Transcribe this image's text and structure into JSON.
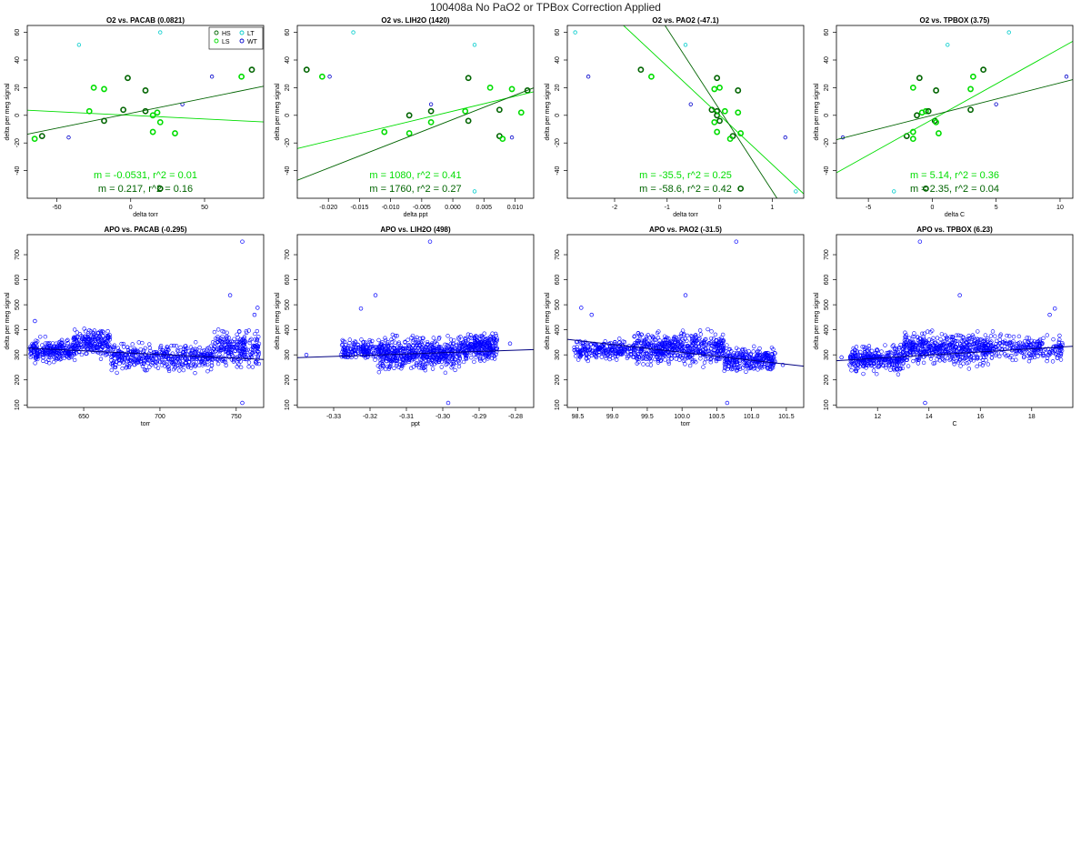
{
  "page": {
    "title": "100408a   No PaO2 or TPBox Correction Applied"
  },
  "colors": {
    "HS": "#006400",
    "LS": "#00dd00",
    "LT": "#00cccc",
    "WT": "#0000cc",
    "apo_points": "#0000ff",
    "apo_line": "#000080",
    "fit_light": "#00dd00",
    "fit_dark": "#006400"
  },
  "legend": {
    "entries": [
      {
        "label": "HS",
        "group": "HS"
      },
      {
        "label": "LT",
        "group": "LT"
      },
      {
        "label": "LS",
        "group": "LS"
      },
      {
        "label": "WT",
        "group": "WT"
      }
    ]
  },
  "chart_data": [
    {
      "type": "scatter",
      "title": "O2 vs. PACAB (0.0821)",
      "xlabel": "delta torr",
      "ylabel": "delta per meg signal",
      "xlim": [
        -70,
        90
      ],
      "ylim": [
        -60,
        65
      ],
      "xticks": [
        -50,
        0,
        50
      ],
      "xtick_labels": [
        "-50",
        "0",
        "50"
      ],
      "yticks": [
        -40,
        -20,
        0,
        20,
        40,
        60
      ],
      "show_legend": true,
      "points": [
        {
          "x": 20,
          "y": 60,
          "g": "LT"
        },
        {
          "x": -35,
          "y": 51,
          "g": "LT"
        },
        {
          "x": 82,
          "y": 33,
          "g": "HS"
        },
        {
          "x": 75,
          "y": 28,
          "g": "LS"
        },
        {
          "x": 55,
          "y": 28,
          "g": "WT"
        },
        {
          "x": -2,
          "y": 27,
          "g": "HS"
        },
        {
          "x": -25,
          "y": 20,
          "g": "LS"
        },
        {
          "x": -18,
          "y": 19,
          "g": "LS"
        },
        {
          "x": 10,
          "y": 18,
          "g": "HS"
        },
        {
          "x": 35,
          "y": 8,
          "g": "WT"
        },
        {
          "x": -5,
          "y": 4,
          "g": "HS"
        },
        {
          "x": -28,
          "y": 3,
          "g": "LS"
        },
        {
          "x": 10,
          "y": 3,
          "g": "HS"
        },
        {
          "x": 18,
          "y": 2,
          "g": "LS"
        },
        {
          "x": 15,
          "y": 0,
          "g": "LS"
        },
        {
          "x": -18,
          "y": -4,
          "g": "HS"
        },
        {
          "x": 20,
          "y": -5,
          "g": "LS"
        },
        {
          "x": 15,
          "y": -12,
          "g": "LS"
        },
        {
          "x": 30,
          "y": -13,
          "g": "LS"
        },
        {
          "x": -60,
          "y": -15,
          "g": "HS"
        },
        {
          "x": -65,
          "y": -17,
          "g": "LS"
        },
        {
          "x": -42,
          "y": -16,
          "g": "WT"
        },
        {
          "x": 20,
          "y": -53,
          "g": "HS"
        }
      ],
      "fits": [
        {
          "g": "LS",
          "m": -0.0531,
          "b": 0,
          "r2": 0.01,
          "label": "m = -0.0531, r^2 = 0.01"
        },
        {
          "g": "HS",
          "m": 0.217,
          "b": 1.5,
          "r2": 0.16,
          "label": "m = 0.217, r^2 = 0.16"
        }
      ]
    },
    {
      "type": "scatter",
      "title": "O2 vs. LIH2O (1420)",
      "xlabel": "delta ppt",
      "ylabel": "delta per meg signal",
      "xlim": [
        -0.025,
        0.013
      ],
      "ylim": [
        -60,
        65
      ],
      "xticks": [
        -0.02,
        -0.015,
        -0.01,
        -0.005,
        0,
        0.005,
        0.01
      ],
      "xtick_labels": [
        "-0.020",
        "-0.015",
        "-0.010",
        "-0.005",
        "0.000",
        "0.005",
        "0.010"
      ],
      "yticks": [
        -40,
        -20,
        0,
        20,
        40,
        60
      ],
      "show_legend": false,
      "points": [
        {
          "x": -0.016,
          "y": 60,
          "g": "LT"
        },
        {
          "x": 0.0035,
          "y": 51,
          "g": "LT"
        },
        {
          "x": -0.0235,
          "y": 33,
          "g": "HS"
        },
        {
          "x": -0.021,
          "y": 28,
          "g": "LS"
        },
        {
          "x": -0.0198,
          "y": 28,
          "g": "WT"
        },
        {
          "x": 0.0025,
          "y": 27,
          "g": "HS"
        },
        {
          "x": 0.006,
          "y": 20,
          "g": "LS"
        },
        {
          "x": 0.0095,
          "y": 19,
          "g": "LS"
        },
        {
          "x": 0.012,
          "y": 18,
          "g": "HS"
        },
        {
          "x": -0.0035,
          "y": 8,
          "g": "WT"
        },
        {
          "x": 0.0075,
          "y": 4,
          "g": "HS"
        },
        {
          "x": 0.002,
          "y": 3,
          "g": "LS"
        },
        {
          "x": -0.0035,
          "y": 3,
          "g": "HS"
        },
        {
          "x": 0.011,
          "y": 2,
          "g": "LS"
        },
        {
          "x": -0.007,
          "y": 0,
          "g": "HS"
        },
        {
          "x": 0.0025,
          "y": -4,
          "g": "HS"
        },
        {
          "x": -0.0035,
          "y": -5,
          "g": "LS"
        },
        {
          "x": -0.011,
          "y": -12,
          "g": "LS"
        },
        {
          "x": -0.007,
          "y": -13,
          "g": "LS"
        },
        {
          "x": 0.0075,
          "y": -15,
          "g": "HS"
        },
        {
          "x": 0.008,
          "y": -17,
          "g": "LS"
        },
        {
          "x": 0.0095,
          "y": -16,
          "g": "WT"
        },
        {
          "x": 0.0035,
          "y": -55,
          "g": "LT"
        }
      ],
      "fits": [
        {
          "g": "LS",
          "m": 1080,
          "b": 3,
          "r2": 0.41,
          "label": "m = 1080, r^2 = 0.41"
        },
        {
          "g": "HS",
          "m": 1760,
          "b": -3,
          "r2": 0.27,
          "label": "m = 1760, r^2 = 0.27"
        }
      ]
    },
    {
      "type": "scatter",
      "title": "O2 vs. PAO2 (-47.1)",
      "xlabel": "delta torr",
      "ylabel": "delta per meg signal",
      "xlim": [
        -2.9,
        1.6
      ],
      "ylim": [
        -60,
        65
      ],
      "xticks": [
        -2,
        -1,
        0,
        1
      ],
      "xtick_labels": [
        "-2",
        "-1",
        "0",
        "1"
      ],
      "yticks": [
        -40,
        -20,
        0,
        20,
        40,
        60
      ],
      "show_legend": false,
      "points": [
        {
          "x": -2.75,
          "y": 60,
          "g": "LT"
        },
        {
          "x": -0.65,
          "y": 51,
          "g": "LT"
        },
        {
          "x": -1.5,
          "y": 33,
          "g": "HS"
        },
        {
          "x": -1.3,
          "y": 28,
          "g": "LS"
        },
        {
          "x": -2.5,
          "y": 28,
          "g": "WT"
        },
        {
          "x": -0.05,
          "y": 27,
          "g": "HS"
        },
        {
          "x": 0.0,
          "y": 20,
          "g": "LS"
        },
        {
          "x": -0.1,
          "y": 19,
          "g": "LS"
        },
        {
          "x": 0.35,
          "y": 18,
          "g": "HS"
        },
        {
          "x": -0.55,
          "y": 8,
          "g": "WT"
        },
        {
          "x": -0.15,
          "y": 4,
          "g": "HS"
        },
        {
          "x": 0.1,
          "y": 3,
          "g": "LS"
        },
        {
          "x": -0.05,
          "y": 3,
          "g": "HS"
        },
        {
          "x": 0.35,
          "y": 2,
          "g": "LS"
        },
        {
          "x": -0.05,
          "y": 0,
          "g": "HS"
        },
        {
          "x": 0.0,
          "y": -4,
          "g": "HS"
        },
        {
          "x": -0.1,
          "y": -5,
          "g": "LS"
        },
        {
          "x": -0.05,
          "y": -12,
          "g": "LS"
        },
        {
          "x": 0.4,
          "y": -13,
          "g": "LS"
        },
        {
          "x": 0.25,
          "y": -15,
          "g": "HS"
        },
        {
          "x": 0.2,
          "y": -17,
          "g": "LS"
        },
        {
          "x": 1.25,
          "y": -16,
          "g": "WT"
        },
        {
          "x": 0.4,
          "y": -53,
          "g": "HS"
        },
        {
          "x": 1.45,
          "y": -55,
          "g": "LT"
        }
      ],
      "fits": [
        {
          "g": "LS",
          "m": -35.5,
          "b": 0,
          "r2": 0.25,
          "label": "m = -35.5, r^2 = 0.25"
        },
        {
          "g": "HS",
          "m": -58.6,
          "b": 4,
          "r2": 0.42,
          "label": "m = -58.6, r^2 = 0.42"
        }
      ]
    },
    {
      "type": "scatter",
      "title": "O2 vs. TPBOX (3.75)",
      "xlabel": "delta C",
      "ylabel": "delta per meg signal",
      "xlim": [
        -7.5,
        11
      ],
      "ylim": [
        -60,
        65
      ],
      "xticks": [
        -5,
        0,
        5,
        10
      ],
      "xtick_labels": [
        "-5",
        "0",
        "5",
        "10"
      ],
      "yticks": [
        -40,
        -20,
        0,
        20,
        40,
        60
      ],
      "show_legend": false,
      "points": [
        {
          "x": 6,
          "y": 60,
          "g": "LT"
        },
        {
          "x": 1.2,
          "y": 51,
          "g": "LT"
        },
        {
          "x": 4,
          "y": 33,
          "g": "HS"
        },
        {
          "x": 3.2,
          "y": 28,
          "g": "LS"
        },
        {
          "x": 10.5,
          "y": 28,
          "g": "WT"
        },
        {
          "x": -1,
          "y": 27,
          "g": "HS"
        },
        {
          "x": -1.5,
          "y": 20,
          "g": "LS"
        },
        {
          "x": 3,
          "y": 19,
          "g": "LS"
        },
        {
          "x": 0.3,
          "y": 18,
          "g": "HS"
        },
        {
          "x": 5,
          "y": 8,
          "g": "WT"
        },
        {
          "x": 3,
          "y": 4,
          "g": "HS"
        },
        {
          "x": -0.5,
          "y": 3,
          "g": "LS"
        },
        {
          "x": -0.3,
          "y": 3,
          "g": "HS"
        },
        {
          "x": -0.8,
          "y": 2,
          "g": "LS"
        },
        {
          "x": -1.2,
          "y": 0,
          "g": "HS"
        },
        {
          "x": 0.2,
          "y": -4,
          "g": "HS"
        },
        {
          "x": 0.3,
          "y": -5,
          "g": "LS"
        },
        {
          "x": -1.5,
          "y": -12,
          "g": "LS"
        },
        {
          "x": 0.5,
          "y": -13,
          "g": "LS"
        },
        {
          "x": -2,
          "y": -15,
          "g": "HS"
        },
        {
          "x": -1.5,
          "y": -17,
          "g": "LS"
        },
        {
          "x": -7,
          "y": -16,
          "g": "WT"
        },
        {
          "x": -0.5,
          "y": -53,
          "g": "HS"
        },
        {
          "x": -3,
          "y": -55,
          "g": "LT"
        }
      ],
      "fits": [
        {
          "g": "LS",
          "m": 5.14,
          "b": -3,
          "r2": 0.36,
          "label": "m = 5.14, r^2 = 0.36"
        },
        {
          "g": "HS",
          "m": 2.35,
          "b": 0,
          "r2": 0.04,
          "label": "m = 2.35, r^2 = 0.04"
        }
      ]
    },
    {
      "type": "scatter",
      "title": "APO vs. PACAB (-0.295)",
      "xlabel": "torr",
      "ylabel": "delta per meg signal",
      "xlim": [
        613,
        768
      ],
      "ylim": [
        90,
        780
      ],
      "xticks": [
        650,
        700,
        750
      ],
      "xtick_labels": [
        "650",
        "700",
        "750"
      ],
      "yticks": [
        100,
        200,
        300,
        400,
        500,
        600,
        700
      ],
      "fit": {
        "m": -0.295,
        "b": 508
      },
      "clusters": [
        {
          "xmin": 615,
          "xmax": 645,
          "ymin": 255,
          "ymax": 375,
          "n": 240
        },
        {
          "xmin": 643,
          "xmax": 668,
          "ymin": 280,
          "ymax": 420,
          "n": 200
        },
        {
          "xmin": 668,
          "xmax": 735,
          "ymin": 215,
          "ymax": 365,
          "n": 420
        },
        {
          "xmin": 735,
          "xmax": 765,
          "ymin": 225,
          "ymax": 420,
          "n": 240
        }
      ],
      "outliers": [
        {
          "x": 754,
          "y": 752
        },
        {
          "x": 746,
          "y": 538
        },
        {
          "x": 754,
          "y": 108
        },
        {
          "x": 764,
          "y": 488
        },
        {
          "x": 762,
          "y": 460
        },
        {
          "x": 618,
          "y": 435
        }
      ]
    },
    {
      "type": "scatter",
      "title": "APO vs. LIH2O (498)",
      "xlabel": "ppt",
      "ylabel": "delta per meg signal",
      "xlim": [
        -0.34,
        -0.275
      ],
      "ylim": [
        90,
        780
      ],
      "xticks": [
        -0.33,
        -0.32,
        -0.31,
        -0.3,
        -0.29,
        -0.28
      ],
      "xtick_labels": [
        "-0.33",
        "-0.32",
        "-0.31",
        "-0.30",
        "-0.29",
        "-0.28"
      ],
      "yticks": [
        100,
        200,
        300,
        400,
        500,
        600,
        700
      ],
      "fit": {
        "m": 498,
        "b": 458
      },
      "clusters": [
        {
          "xmin": -0.328,
          "xmax": -0.318,
          "ymin": 270,
          "ymax": 370,
          "n": 150
        },
        {
          "xmin": -0.318,
          "xmax": -0.295,
          "ymin": 215,
          "ymax": 395,
          "n": 560
        },
        {
          "xmin": -0.295,
          "xmax": -0.285,
          "ymin": 255,
          "ymax": 410,
          "n": 260
        }
      ],
      "outliers": [
        {
          "x": -0.3035,
          "y": 752
        },
        {
          "x": -0.3185,
          "y": 538
        },
        {
          "x": -0.2985,
          "y": 108
        },
        {
          "x": -0.3225,
          "y": 485
        },
        {
          "x": -0.3375,
          "y": 300
        },
        {
          "x": -0.2815,
          "y": 345
        }
      ]
    },
    {
      "type": "scatter",
      "title": "APO vs. PAO2 (-31.5)",
      "xlabel": "torr",
      "ylabel": "delta per meg signal",
      "xlim": [
        98.35,
        101.75
      ],
      "ylim": [
        90,
        780
      ],
      "xticks": [
        98.5,
        99.0,
        99.5,
        100.0,
        100.5,
        101.0,
        101.5
      ],
      "xtick_labels": [
        "98.5",
        "99.0",
        "99.5",
        "100.0",
        "100.5",
        "101.0",
        "101.5"
      ],
      "yticks": [
        100,
        200,
        300,
        400,
        500,
        600,
        700
      ],
      "fit": {
        "m": -31.5,
        "b": 3460
      },
      "clusters": [
        {
          "xmin": 98.45,
          "xmax": 99.3,
          "ymin": 270,
          "ymax": 375,
          "n": 220
        },
        {
          "xmin": 99.3,
          "xmax": 100.6,
          "ymin": 240,
          "ymax": 410,
          "n": 520
        },
        {
          "xmin": 100.6,
          "xmax": 101.35,
          "ymin": 220,
          "ymax": 345,
          "n": 260
        }
      ],
      "outliers": [
        {
          "x": 100.78,
          "y": 752
        },
        {
          "x": 100.05,
          "y": 538
        },
        {
          "x": 100.65,
          "y": 108
        },
        {
          "x": 98.55,
          "y": 488
        },
        {
          "x": 98.7,
          "y": 460
        },
        {
          "x": 101.45,
          "y": 260
        }
      ]
    },
    {
      "type": "scatter",
      "title": "APO vs. TPBOX (6.23)",
      "xlabel": "C",
      "ylabel": "delta per meg signal",
      "xlim": [
        10.4,
        19.6
      ],
      "ylim": [
        90,
        780
      ],
      "xticks": [
        12,
        14,
        16,
        18
      ],
      "xtick_labels": [
        "12",
        "14",
        "16",
        "18"
      ],
      "yticks": [
        100,
        200,
        300,
        400,
        500,
        600,
        700
      ],
      "fit": {
        "m": 6.23,
        "b": 212
      },
      "clusters": [
        {
          "xmin": 10.9,
          "xmax": 13.0,
          "ymin": 215,
          "ymax": 350,
          "n": 300
        },
        {
          "xmin": 13.0,
          "xmax": 16.5,
          "ymin": 240,
          "ymax": 410,
          "n": 520
        },
        {
          "xmin": 16.5,
          "xmax": 19.2,
          "ymin": 255,
          "ymax": 395,
          "n": 220
        }
      ],
      "outliers": [
        {
          "x": 13.65,
          "y": 752
        },
        {
          "x": 15.2,
          "y": 538
        },
        {
          "x": 13.85,
          "y": 108
        },
        {
          "x": 18.9,
          "y": 485
        },
        {
          "x": 18.7,
          "y": 460
        },
        {
          "x": 10.6,
          "y": 290
        }
      ]
    }
  ]
}
